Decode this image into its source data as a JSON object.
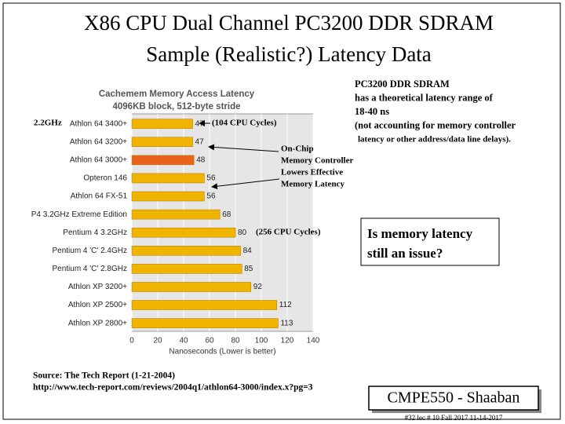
{
  "slide": {
    "title_lines": [
      "X86 CPU Dual Channel PC3200 DDR SDRAM",
      "Sample (Realistic?) Latency Data"
    ],
    "note_lines": [
      "PC3200 DDR SDRAM",
      "has a theoretical latency range of",
      "18-40 ns",
      "(not accounting  for memory controller",
      "latency or other address/data line delays)."
    ],
    "question_lines": [
      "Is memory latency",
      "still an issue?"
    ],
    "source_lines": [
      "Source: The Tech Report  (1-21-2004)",
      "http://www.tech-report.com/reviews/2004q1/athlon64-3000/index.x?pg=3"
    ],
    "course": "CMPE550 - Shaaban",
    "footer": "#32  lec # 10  Fall 2017  11-14-2017"
  },
  "chart_data": {
    "type": "bar",
    "orientation": "horizontal",
    "title": "Cachemem Memory Access Latency",
    "subtitle": "4096KB block, 512-byte stride",
    "x_label": "Nanoseconds (Lower is better)",
    "categories": [
      "Athlon 64 3400+",
      "Athlon 64 3200+",
      "Athlon 64 3000+",
      "Opteron 146",
      "Athlon 64 FX-51",
      "P4 3.2GHz Extreme Edition",
      "Pentium 4 3.2GHz",
      "Pentium 4 'C' 2.4GHz",
      "Pentium 4 'C' 2.8GHz",
      "Athlon XP 3200+",
      "Athlon XP 2500+",
      "Athlon XP 2800+"
    ],
    "values": [
      47,
      47,
      48,
      56,
      56,
      68,
      80,
      84,
      85,
      92,
      112,
      113
    ],
    "colors": [
      "#f0b400",
      "#f0b400",
      "#e8641a",
      "#f0b400",
      "#f0b400",
      "#f0b400",
      "#f0b400",
      "#f0b400",
      "#f0b400",
      "#f0b400",
      "#f0b400",
      "#f0b400"
    ],
    "xlim": [
      0,
      140
    ],
    "xticks": [
      0,
      20,
      40,
      60,
      80,
      100,
      120,
      140
    ],
    "grid": true,
    "annotations": {
      "clock": "2.2GHz",
      "cycles_low": "(104 CPU Cycles)",
      "cycles_high": "(256 CPU Cycles)",
      "controller_lines": [
        "On-Chip",
        "Memory Controller",
        "Lowers Effective",
        "Memory Latency"
      ]
    }
  }
}
